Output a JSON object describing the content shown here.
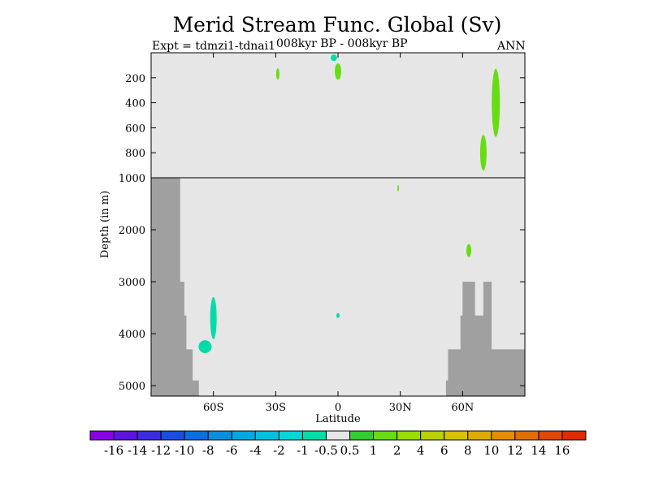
{
  "title": "Merid Stream Func. Global (Sv)",
  "experiment": "Expt = tdmzi1-tdnai1",
  "period": "008kyr BP - 008kyr BP",
  "season": "ANN",
  "chart_data": {
    "type": "heatmap",
    "title": "Merid Stream Func. Global (Sv)",
    "xlabel": "Latitude",
    "ylabel": "Depth (in m)",
    "xlim": [
      -90,
      90
    ],
    "x_ticks": [
      -60,
      -30,
      0,
      30,
      60
    ],
    "x_tick_labels": [
      "60S",
      "30S",
      "0",
      "30N",
      "60N"
    ],
    "upper_panel": {
      "ylim": [
        0,
        1000
      ],
      "y_ticks": [
        200,
        400,
        600,
        800,
        1000
      ],
      "y_tick_labels": [
        "200",
        "400",
        "600",
        "800",
        "1000"
      ]
    },
    "lower_panel": {
      "ylim": [
        1000,
        5200
      ],
      "y_ticks": [
        2000,
        3000,
        4000,
        5000
      ],
      "y_tick_labels": [
        "2000",
        "3000",
        "4000",
        "5000"
      ]
    },
    "colorbar": {
      "labels": [
        "-16",
        "-14",
        "-12",
        "-10",
        "-8",
        "-6",
        "-4",
        "-2",
        "-1",
        "-0.5",
        "0.5",
        "1",
        "2",
        "4",
        "6",
        "8",
        "10",
        "12",
        "14",
        "16"
      ],
      "colors": [
        "#8a00e6",
        "#5d14e0",
        "#3a2ce0",
        "#1a4ee0",
        "#0a6ee0",
        "#0a8ee0",
        "#00a8e0",
        "#00c0e0",
        "#00d8d8",
        "#00dca8",
        "#e6e6e6",
        "#33cc33",
        "#66dd11",
        "#99dd00",
        "#bbd000",
        "#d6c200",
        "#e0aa00",
        "#e08e00",
        "#e06e00",
        "#e04800",
        "#e02a00"
      ]
    },
    "contours": [
      {
        "value": "1",
        "lat": -29,
        "depth": 170
      },
      {
        "value": "-1",
        "lat": -2,
        "depth": 40
      },
      {
        "value": "1",
        "lat": 0,
        "depth": 150
      },
      {
        "value": "1",
        "lat": 76,
        "depth": 400
      },
      {
        "value": "1",
        "lat": 70,
        "depth": 800
      },
      {
        "value": "1",
        "lat": 29,
        "depth": 1200
      },
      {
        "value": "1",
        "lat": 63,
        "depth": 2400
      },
      {
        "value": "-1",
        "lat": -60,
        "depth": 3700
      },
      {
        "value": "-1",
        "lat": -64,
        "depth": 4250
      },
      {
        "value": "-1",
        "lat": 0,
        "depth": 3650
      }
    ],
    "topography": {
      "south": [
        [
          -90,
          1000
        ],
        [
          -76,
          1000
        ],
        [
          -76,
          3000
        ],
        [
          -74,
          3000
        ],
        [
          -74,
          3650
        ],
        [
          -73,
          3650
        ],
        [
          -73,
          4300
        ],
        [
          -70,
          4300
        ],
        [
          -70,
          4900
        ],
        [
          -67,
          4900
        ],
        [
          -67,
          5200
        ]
      ],
      "north": [
        [
          52,
          5200
        ],
        [
          52,
          4900
        ],
        [
          53,
          4900
        ],
        [
          53,
          4300
        ],
        [
          59,
          4300
        ],
        [
          59,
          3650
        ],
        [
          60,
          3650
        ],
        [
          60,
          3000
        ],
        [
          66,
          3000
        ],
        [
          66,
          3650
        ],
        [
          70,
          3650
        ],
        [
          70,
          3000
        ],
        [
          74,
          3000
        ],
        [
          74,
          4300
        ],
        [
          90,
          4300
        ]
      ]
    }
  }
}
